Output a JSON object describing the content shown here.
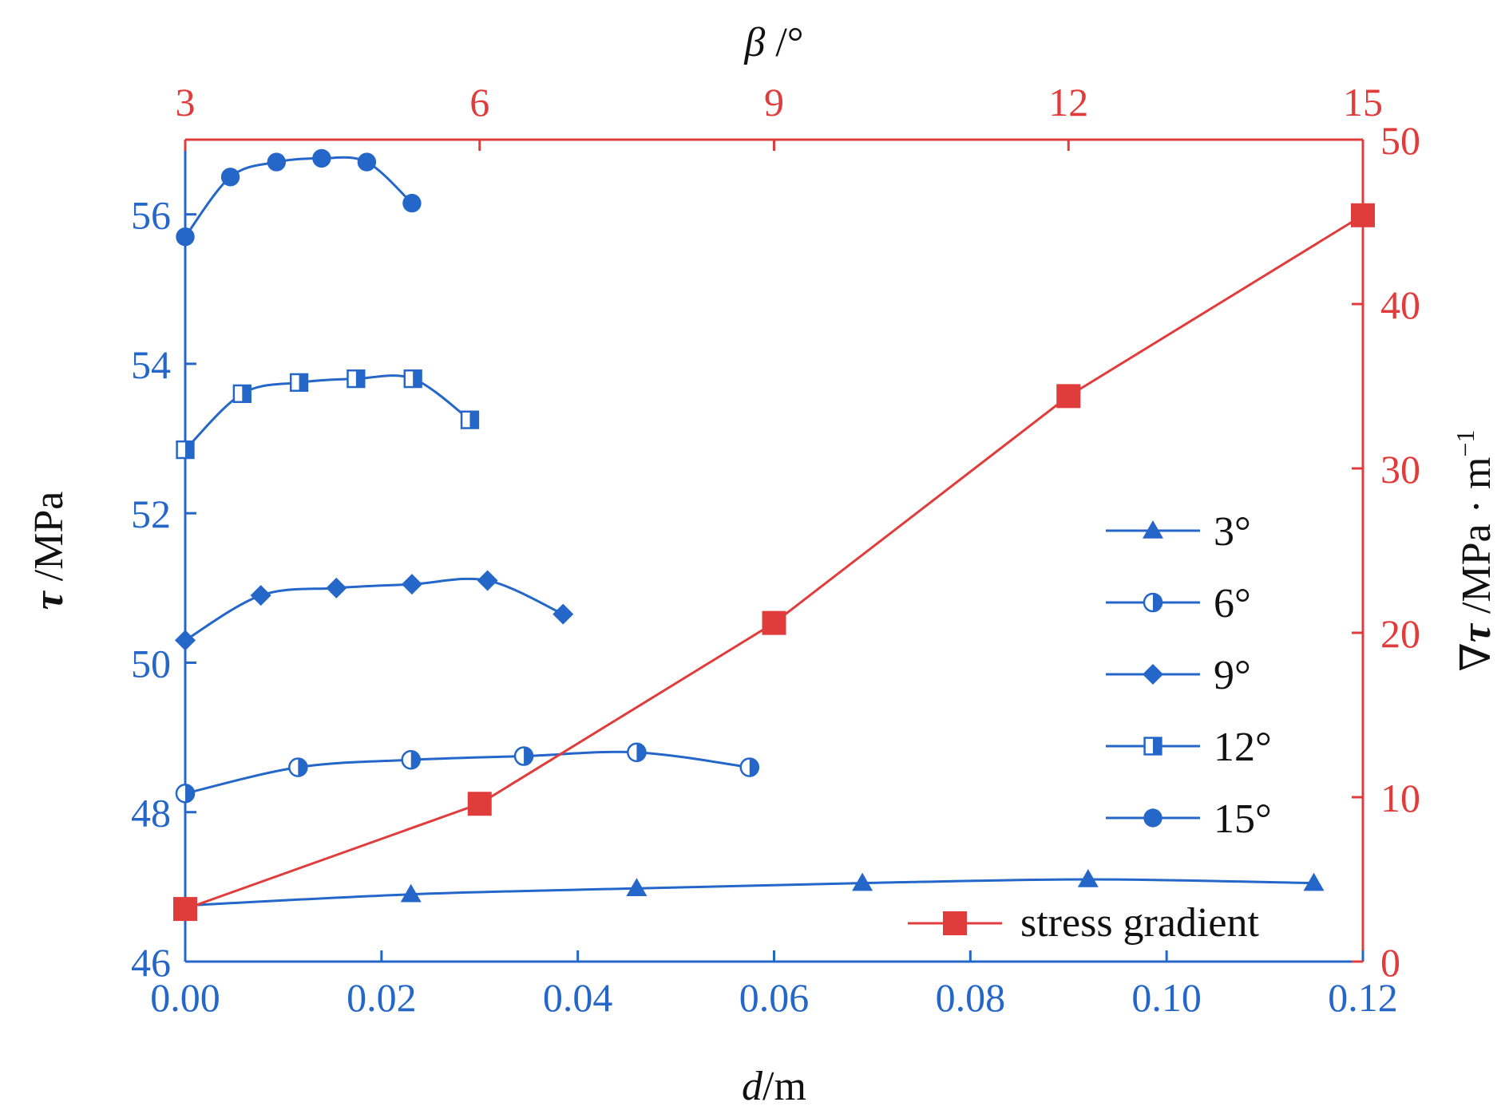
{
  "chart_data": {
    "type": "line",
    "x_bottom": {
      "label_italic": "d",
      "label_rest": "/m",
      "range": [
        0,
        0.12
      ],
      "ticks": [
        "0.00",
        "0.02",
        "0.04",
        "0.06",
        "0.08",
        "0.10",
        "0.12"
      ]
    },
    "x_top": {
      "label_italic": "β",
      "label_rest": " /°",
      "range": [
        3,
        15
      ],
      "ticks": [
        "3",
        "6",
        "9",
        "12",
        "15"
      ]
    },
    "y_left": {
      "label_italic": "τ",
      "label_rest": " /MPa",
      "range": [
        46,
        57
      ],
      "ticks": [
        "46",
        "48",
        "50",
        "52",
        "54",
        "56"
      ]
    },
    "y_right": {
      "label_prefix": "∇",
      "label_italic": "τ",
      "label_rest": " /MPa · m",
      "label_sup": "−1",
      "range": [
        0,
        50
      ],
      "ticks": [
        "0",
        "10",
        "20",
        "30",
        "40",
        "50"
      ]
    },
    "colors": {
      "shear": "#2467c8",
      "gradient": "#e03c3c"
    },
    "series": [
      {
        "name": "3°",
        "marker": "triangle",
        "axis": "left",
        "x": [
          0.0,
          0.023,
          0.046,
          0.069,
          0.092,
          0.115
        ],
        "y": [
          46.75,
          46.9,
          46.98,
          47.05,
          47.1,
          47.05
        ]
      },
      {
        "name": "6°",
        "marker": "half-circle",
        "axis": "left",
        "x": [
          0.0,
          0.0115,
          0.023,
          0.0345,
          0.046,
          0.0575
        ],
        "y": [
          48.25,
          48.6,
          48.7,
          48.75,
          48.8,
          48.6
        ]
      },
      {
        "name": "9°",
        "marker": "diamond",
        "axis": "left",
        "x": [
          0.0,
          0.0077,
          0.0154,
          0.0231,
          0.0308,
          0.0385
        ],
        "y": [
          50.3,
          50.9,
          51.0,
          51.05,
          51.1,
          50.65
        ]
      },
      {
        "name": "12°",
        "marker": "half-square",
        "axis": "left",
        "x": [
          0.0,
          0.0058,
          0.0116,
          0.0174,
          0.0232,
          0.029
        ],
        "y": [
          52.85,
          53.6,
          53.75,
          53.8,
          53.8,
          53.25
        ]
      },
      {
        "name": "15°",
        "marker": "circle",
        "axis": "left",
        "x": [
          0.0,
          0.0046,
          0.0093,
          0.0139,
          0.0185,
          0.0231
        ],
        "y": [
          55.7,
          56.5,
          56.7,
          56.75,
          56.7,
          56.15
        ]
      },
      {
        "name": "stress gradient",
        "marker": "square",
        "axis": "right",
        "x_axis": "top",
        "x": [
          3,
          6,
          9,
          12,
          15
        ],
        "y": [
          3.2,
          9.6,
          20.6,
          34.4,
          45.4
        ]
      }
    ],
    "legend_placement": "bottom-right",
    "grid": false
  }
}
